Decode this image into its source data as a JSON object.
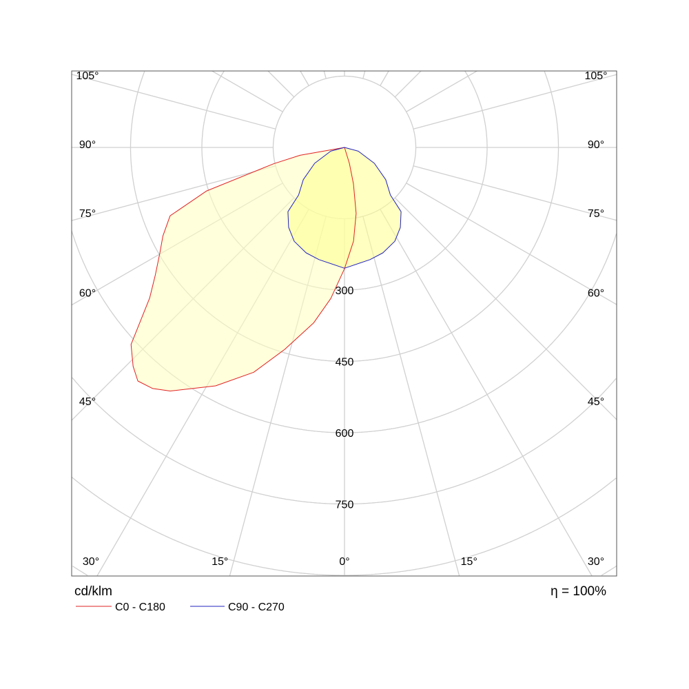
{
  "chart_data": {
    "type": "polar",
    "unit_label": "cd/klm",
    "efficiency_label": "η = 100%",
    "radial_ticks": [
      300,
      450,
      600,
      750
    ],
    "radial_rings": [
      150,
      300,
      450,
      600,
      750,
      900,
      1050
    ],
    "angle_step_deg": 15,
    "side_angle_labels": [
      "105°",
      "90°",
      "75°",
      "60°",
      "45°"
    ],
    "side_angle_values": [
      105,
      90,
      75,
      60,
      45
    ],
    "bottom_angle_labels": [
      "30°",
      "15°",
      "0°",
      "15°",
      "30°"
    ],
    "bottom_angle_values": [
      -30,
      -15,
      0,
      15,
      30
    ],
    "grid": true,
    "legend_placement": "bottom-left",
    "series": [
      {
        "name": "C0 - C180",
        "color": "#e02020",
        "fill": "#ffffc0",
        "points": [
          [
            -90,
            0
          ],
          [
            -80,
            95
          ],
          [
            -77,
            153
          ],
          [
            -72.5,
            304
          ],
          [
            -68.6,
            394
          ],
          [
            -64,
            425
          ],
          [
            -60.3,
            447
          ],
          [
            -56,
            480
          ],
          [
            -52.3,
            518
          ],
          [
            -47.3,
            611
          ],
          [
            -44,
            640
          ],
          [
            -41.5,
            656
          ],
          [
            -38.5,
            648
          ],
          [
            -35.6,
            630
          ],
          [
            -28.4,
            570
          ],
          [
            -22,
            510
          ],
          [
            -16.5,
            443
          ],
          [
            -10,
            375
          ],
          [
            -5.2,
            319
          ],
          [
            0,
            255
          ],
          [
            5.5,
            198
          ],
          [
            10,
            141
          ],
          [
            13.8,
            79
          ],
          [
            17,
            35
          ],
          [
            20,
            0
          ]
        ]
      },
      {
        "name": "C90 - C270",
        "color": "#2020c0",
        "fill": "#ffff90",
        "points": [
          [
            -90,
            0
          ],
          [
            -75,
            30
          ],
          [
            -62,
            71
          ],
          [
            -52,
            110
          ],
          [
            -44,
            139
          ],
          [
            -41.4,
            180
          ],
          [
            -35,
            205
          ],
          [
            -28.2,
            224
          ],
          [
            -20,
            236
          ],
          [
            -12.8,
            242
          ],
          [
            0,
            254
          ],
          [
            12.8,
            242
          ],
          [
            20,
            236
          ],
          [
            28.2,
            224
          ],
          [
            35,
            205
          ],
          [
            41.4,
            180
          ],
          [
            44,
            139
          ],
          [
            52,
            110
          ],
          [
            62,
            71
          ],
          [
            75,
            30
          ],
          [
            90,
            0
          ]
        ]
      }
    ]
  }
}
